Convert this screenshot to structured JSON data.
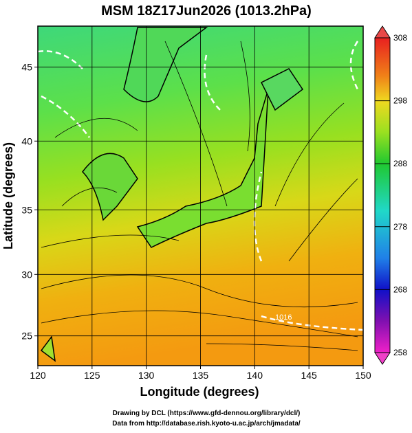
{
  "title": "MSM 18Z17Jun2026 (1013.2hPa)",
  "map": {
    "xlabel": "Longitude (degrees)",
    "ylabel": "Latitude  (degrees)",
    "xlim": [
      120,
      150
    ],
    "ylim": [
      22.5,
      47.6
    ],
    "xticks": [
      120,
      125,
      130,
      135,
      140,
      145,
      150
    ],
    "yticks": [
      25,
      30,
      35,
      40,
      45
    ],
    "contour_label": "1016"
  },
  "colorbar": {
    "lim": [
      258,
      308
    ],
    "ticks": [
      258,
      268,
      278,
      288,
      298,
      308
    ]
  },
  "credits": [
    "Drawing by DCL (https://www.gfd-dennou.org/library/dcl/)",
    "Data from http://database.rish.kyoto-u.ac.jp/arch/jmadata/"
  ]
}
